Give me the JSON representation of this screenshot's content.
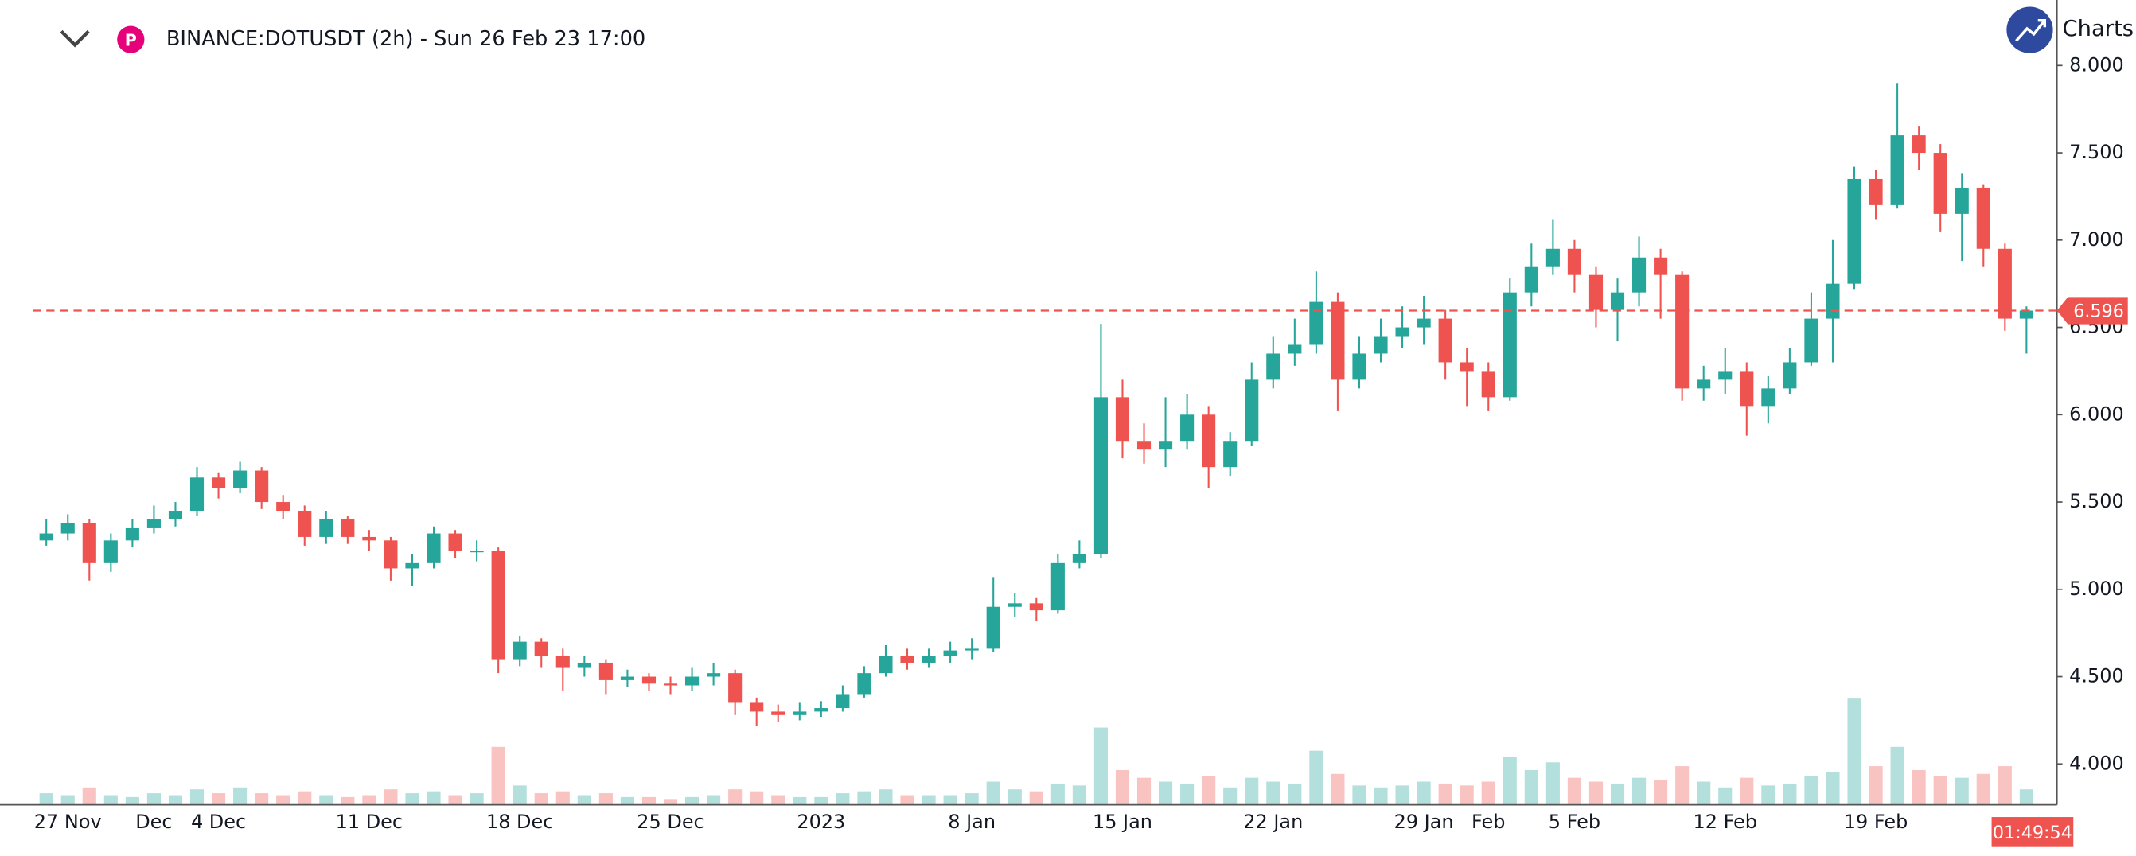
{
  "header": {
    "title": "BINANCE:DOTUSDT (2h) - Sun 26 Feb 23 17:00",
    "brand": "Charts p"
  },
  "chart_data": {
    "type": "candlestick",
    "up_color": "#26a69a",
    "down_color": "#ef5350",
    "categories": [
      null,
      "27 Nov",
      null,
      null,
      null,
      "Dec",
      null,
      null,
      "4 Dec",
      null,
      null,
      null,
      null,
      null,
      null,
      "11 Dec",
      null,
      null,
      null,
      null,
      null,
      null,
      "18 Dec",
      null,
      null,
      null,
      null,
      null,
      null,
      "25 Dec",
      null,
      null,
      null,
      null,
      null,
      null,
      "2023",
      null,
      null,
      null,
      null,
      null,
      null,
      "8 Jan",
      null,
      null,
      null,
      null,
      null,
      null,
      "15 Jan",
      null,
      null,
      null,
      null,
      null,
      null,
      "22 Jan",
      null,
      null,
      null,
      null,
      null,
      null,
      "29 Jan",
      null,
      null,
      "Feb",
      null,
      null,
      null,
      "5 Feb",
      null,
      null,
      null,
      null,
      null,
      null,
      "12 Feb",
      null,
      null,
      null,
      null,
      null,
      null,
      "19 Feb",
      null,
      null,
      null,
      null,
      null,
      null,
      null
    ],
    "open": [
      5.28,
      5.32,
      5.38,
      5.15,
      5.28,
      5.35,
      5.4,
      5.45,
      5.64,
      5.58,
      5.68,
      5.5,
      5.45,
      5.3,
      5.4,
      5.3,
      5.28,
      5.12,
      5.15,
      5.32,
      5.22,
      5.22,
      4.6,
      4.7,
      4.62,
      4.55,
      4.58,
      4.48,
      4.5,
      4.46,
      4.45,
      4.5,
      4.52,
      4.35,
      4.3,
      4.28,
      4.3,
      4.32,
      4.4,
      4.52,
      4.62,
      4.58,
      4.62,
      4.65,
      4.66,
      4.9,
      4.92,
      4.88,
      5.15,
      5.2,
      6.1,
      5.85,
      5.8,
      5.85,
      6.0,
      5.7,
      5.85,
      6.2,
      6.35,
      6.4,
      6.65,
      6.2,
      6.35,
      6.45,
      6.5,
      6.55,
      6.3,
      6.25,
      6.1,
      6.7,
      6.85,
      6.95,
      6.8,
      6.6,
      6.7,
      6.9,
      6.8,
      6.15,
      6.2,
      6.25,
      6.05,
      6.15,
      6.3,
      6.55,
      6.75,
      7.35,
      7.2,
      7.6,
      7.5,
      7.15,
      7.3,
      6.95,
      6.55
    ],
    "high": [
      5.4,
      5.43,
      5.4,
      5.32,
      5.4,
      5.48,
      5.5,
      5.7,
      5.67,
      5.73,
      5.7,
      5.54,
      5.48,
      5.45,
      5.42,
      5.34,
      5.3,
      5.2,
      5.36,
      5.34,
      5.28,
      5.24,
      4.73,
      4.72,
      4.66,
      4.62,
      4.6,
      4.54,
      4.52,
      4.5,
      4.55,
      4.58,
      4.54,
      4.38,
      4.34,
      4.35,
      4.36,
      4.45,
      4.56,
      4.68,
      4.66,
      4.66,
      4.7,
      4.72,
      5.07,
      4.98,
      4.95,
      5.2,
      5.28,
      6.52,
      6.2,
      5.95,
      6.1,
      6.12,
      6.05,
      5.9,
      6.3,
      6.45,
      6.55,
      6.82,
      6.7,
      6.45,
      6.55,
      6.62,
      6.68,
      6.6,
      6.38,
      6.3,
      6.78,
      6.98,
      7.12,
      7.0,
      6.85,
      6.78,
      7.02,
      6.95,
      6.82,
      6.28,
      6.38,
      6.3,
      6.22,
      6.38,
      6.7,
      7.0,
      7.42,
      7.4,
      7.9,
      7.65,
      7.55,
      7.38,
      7.32,
      6.98,
      6.62
    ],
    "low": [
      5.25,
      5.28,
      5.05,
      5.1,
      5.24,
      5.32,
      5.36,
      5.42,
      5.52,
      5.55,
      5.46,
      5.4,
      5.25,
      5.26,
      5.26,
      5.22,
      5.05,
      5.02,
      5.12,
      5.18,
      5.16,
      4.52,
      4.56,
      4.55,
      4.42,
      4.5,
      4.4,
      4.44,
      4.42,
      4.4,
      4.42,
      4.45,
      4.28,
      4.22,
      4.24,
      4.25,
      4.27,
      4.3,
      4.38,
      4.5,
      4.54,
      4.55,
      4.58,
      4.6,
      4.64,
      4.84,
      4.82,
      4.86,
      5.12,
      5.18,
      5.75,
      5.72,
      5.7,
      5.8,
      5.58,
      5.65,
      5.82,
      6.15,
      6.28,
      6.35,
      6.02,
      6.15,
      6.3,
      6.38,
      6.4,
      6.2,
      6.05,
      6.02,
      6.08,
      6.62,
      6.8,
      6.7,
      6.5,
      6.42,
      6.62,
      6.55,
      6.08,
      6.08,
      6.12,
      5.88,
      5.95,
      6.12,
      6.28,
      6.3,
      6.72,
      7.12,
      7.18,
      7.4,
      7.05,
      6.88,
      6.85,
      6.48,
      6.35
    ],
    "close": [
      5.32,
      5.38,
      5.15,
      5.28,
      5.35,
      5.4,
      5.45,
      5.64,
      5.58,
      5.68,
      5.5,
      5.45,
      5.3,
      5.4,
      5.3,
      5.28,
      5.12,
      5.15,
      5.32,
      5.22,
      5.22,
      4.6,
      4.7,
      4.62,
      4.55,
      4.58,
      4.48,
      4.5,
      4.46,
      4.45,
      4.5,
      4.52,
      4.35,
      4.3,
      4.28,
      4.3,
      4.32,
      4.4,
      4.52,
      4.62,
      4.58,
      4.62,
      4.65,
      4.66,
      4.9,
      4.92,
      4.88,
      5.15,
      5.2,
      6.1,
      5.85,
      5.8,
      5.85,
      6.0,
      5.7,
      5.85,
      6.2,
      6.35,
      6.4,
      6.65,
      6.2,
      6.35,
      6.45,
      6.5,
      6.55,
      6.3,
      6.25,
      6.1,
      6.7,
      6.85,
      6.95,
      6.8,
      6.6,
      6.7,
      6.9,
      6.8,
      6.15,
      6.2,
      6.25,
      6.05,
      6.15,
      6.3,
      6.55,
      6.75,
      7.35,
      7.2,
      7.6,
      7.5,
      7.15,
      7.3,
      6.95,
      6.55,
      6.596
    ],
    "volume": [
      6,
      5,
      9,
      5,
      4,
      6,
      5,
      8,
      6,
      9,
      6,
      5,
      7,
      5,
      4,
      5,
      8,
      6,
      7,
      5,
      6,
      30,
      10,
      6,
      7,
      5,
      6,
      4,
      4,
      3,
      4,
      5,
      8,
      7,
      5,
      4,
      4,
      6,
      7,
      8,
      5,
      5,
      5,
      6,
      12,
      8,
      7,
      11,
      10,
      40,
      18,
      14,
      12,
      11,
      15,
      9,
      14,
      12,
      11,
      28,
      16,
      10,
      9,
      10,
      12,
      11,
      10,
      12,
      25,
      18,
      22,
      14,
      12,
      11,
      14,
      13,
      20,
      12,
      9,
      14,
      10,
      11,
      15,
      17,
      55,
      20,
      30,
      18,
      15,
      14,
      16,
      20,
      8
    ],
    "last_price": 6.596,
    "countdown": "01:49:54",
    "ylim": [
      3.766,
      8.375
    ],
    "yticks": [
      {
        "value": 4,
        "label": "4.000"
      },
      {
        "value": 4.5,
        "label": "4.500"
      },
      {
        "value": 5,
        "label": "5.000"
      },
      {
        "value": 5.5,
        "label": "5.500"
      },
      {
        "value": 6,
        "label": "6.000"
      },
      {
        "value": 6.5,
        "label": "6.500"
      },
      {
        "value": 7,
        "label": "7.000"
      },
      {
        "value": 7.5,
        "label": "7.500"
      },
      {
        "value": 8,
        "label": "8.000"
      }
    ]
  }
}
